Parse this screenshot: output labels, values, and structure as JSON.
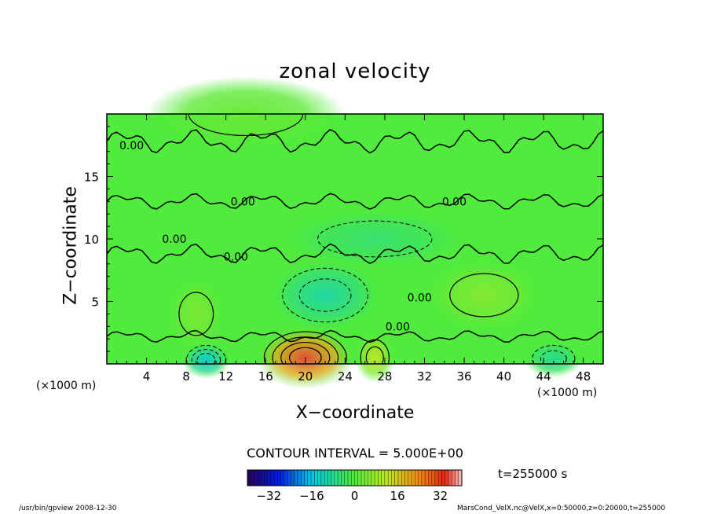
{
  "chart_data": {
    "type": "heatmap",
    "title": "zonal velocity",
    "xlabel": "X−coordinate",
    "ylabel": "Z−coordinate",
    "x_unit": "(×1000 m)",
    "xlim": [
      0,
      50
    ],
    "ylim": [
      0,
      20
    ],
    "xticks": [
      4,
      8,
      12,
      16,
      20,
      24,
      28,
      32,
      36,
      40,
      44,
      48
    ],
    "yticks": [
      5,
      10,
      15
    ],
    "contour_interval_text": "CONTOUR INTERVAL = 5.000E+00",
    "contour_label": "0.00",
    "contour_label_points": [
      [
        2.5,
        17.5
      ],
      [
        13.7,
        13
      ],
      [
        6.8,
        10
      ],
      [
        13,
        8.6
      ],
      [
        35,
        13
      ],
      [
        31.5,
        5.3
      ],
      [
        29.3,
        3
      ]
    ],
    "colorbar": {
      "min": -40,
      "max": 40,
      "ticks": [
        -32,
        -16,
        0,
        16,
        32
      ]
    },
    "time_label": "t=255000 s",
    "features": [
      {
        "x": 20,
        "z": 0.5,
        "value": 35,
        "rx": 5,
        "rz": 2.5
      },
      {
        "x": 27,
        "z": 0.5,
        "value": 12,
        "rx": 2,
        "rz": 2
      },
      {
        "x": 10,
        "z": 0.3,
        "value": -14,
        "rx": 2.5,
        "rz": 1.5
      },
      {
        "x": 22,
        "z": 5.5,
        "value": -10,
        "rx": 6,
        "rz": 3
      },
      {
        "x": 27,
        "z": 10,
        "value": -5,
        "rx": 10,
        "rz": 2.5
      },
      {
        "x": 9,
        "z": 4,
        "value": 5,
        "rx": 3,
        "rz": 3
      },
      {
        "x": 38,
        "z": 5.5,
        "value": 6,
        "rx": 6,
        "rz": 3
      },
      {
        "x": 45,
        "z": 0.4,
        "value": -8,
        "rx": 3,
        "rz": 1.5
      },
      {
        "x": 14,
        "z": 20,
        "value": 3,
        "rx": 10,
        "rz": 3
      }
    ]
  },
  "footer": {
    "left": "/usr/bin/gpview  2008-12-30",
    "right": "MarsCond_VelX.nc@VelX,x=0:50000,z=0:20000,t=255000"
  },
  "colors": {
    "background": "#ffffff",
    "frame": "#000000"
  }
}
